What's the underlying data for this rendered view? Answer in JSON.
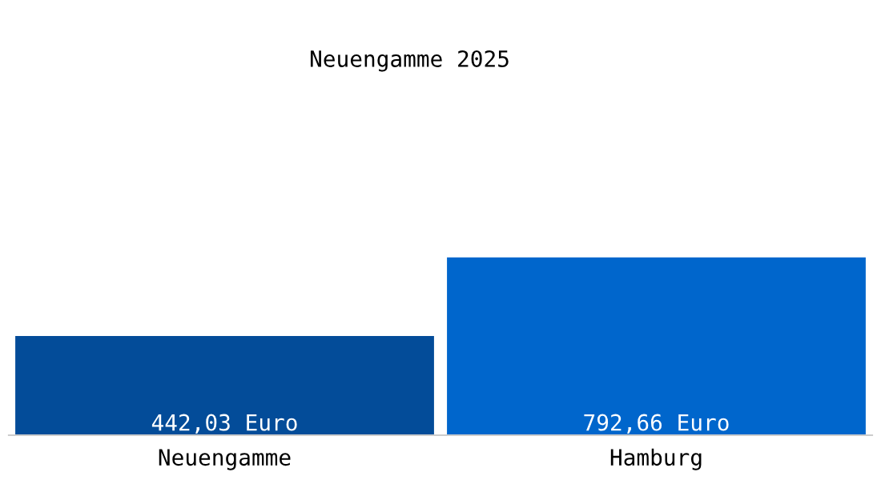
{
  "chart_data": {
    "type": "bar",
    "title": "Neuengamme 2025",
    "categories": [
      "Neuengamme",
      "Hamburg"
    ],
    "values": [
      442.03,
      792.66
    ],
    "colors": [
      "#034c99",
      "#0066cc"
    ],
    "value_labels": [
      "442,03 Euro",
      "792,66 Euro"
    ],
    "tick_labels": "x",
    "grid": false,
    "legend": false
  }
}
